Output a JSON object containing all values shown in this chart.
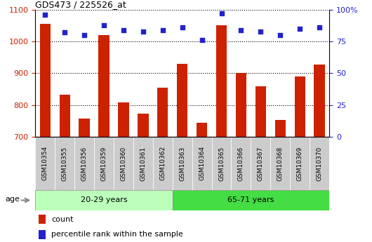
{
  "title": "GDS473 / 225526_at",
  "samples": [
    "GSM10354",
    "GSM10355",
    "GSM10356",
    "GSM10359",
    "GSM10360",
    "GSM10361",
    "GSM10362",
    "GSM10363",
    "GSM10364",
    "GSM10365",
    "GSM10366",
    "GSM10367",
    "GSM10368",
    "GSM10369",
    "GSM10370"
  ],
  "counts": [
    1055,
    833,
    758,
    1020,
    808,
    773,
    855,
    930,
    743,
    1050,
    900,
    858,
    752,
    890,
    928
  ],
  "percentile_ranks": [
    96,
    82,
    80,
    88,
    84,
    83,
    84,
    86,
    76,
    97,
    84,
    83,
    80,
    85,
    86
  ],
  "group1_label": "20-29 years",
  "group2_label": "65-71 years",
  "group1_count": 7,
  "group2_count": 8,
  "ylim_left": [
    700,
    1100
  ],
  "ylim_right": [
    0,
    100
  ],
  "yticks_left": [
    700,
    800,
    900,
    1000,
    1100
  ],
  "yticks_right": [
    0,
    25,
    50,
    75,
    100
  ],
  "ytick_labels_right": [
    "0",
    "25",
    "50",
    "75",
    "100%"
  ],
  "bar_color": "#cc2200",
  "dot_color": "#2222cc",
  "group1_bg": "#bbffbb",
  "group2_bg": "#44dd44",
  "tick_bg": "#cccccc",
  "legend_count_label": "count",
  "legend_pct_label": "percentile rank within the sample",
  "age_label": "age"
}
